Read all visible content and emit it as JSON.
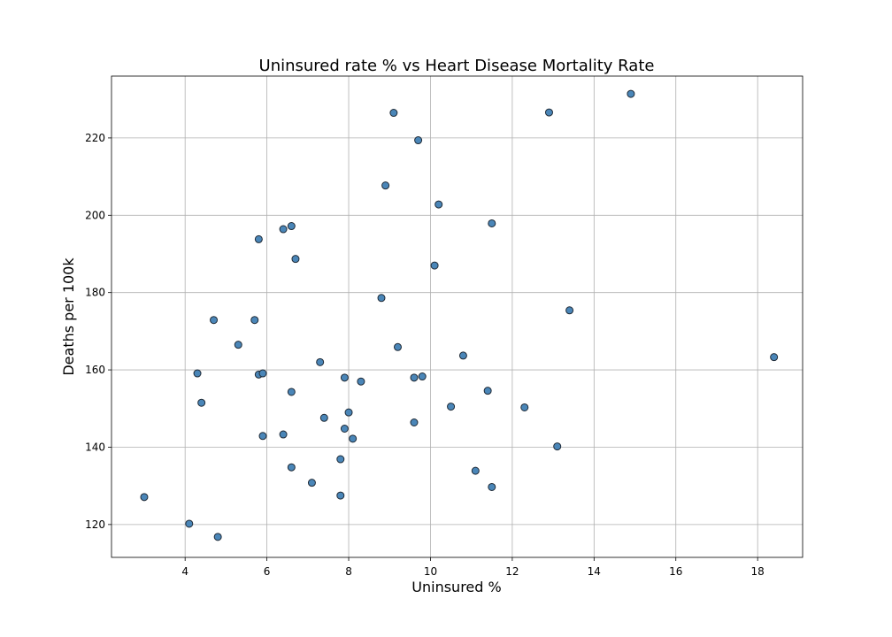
{
  "chart_data": {
    "type": "scatter",
    "title": "Uninsured rate % vs Heart Disease Mortality Rate",
    "xlabel": "Uninsured %",
    "ylabel": "Deaths per 100k",
    "xlim": [
      2.2,
      19.1
    ],
    "ylim": [
      111.5,
      236.0
    ],
    "xticks": [
      4,
      6,
      8,
      10,
      12,
      14,
      16,
      18
    ],
    "yticks": [
      120,
      140,
      160,
      180,
      200,
      220
    ],
    "grid": true,
    "point_color": "#4a86b8",
    "point_edge_color": "#1f2a36",
    "points": [
      {
        "x": 3.0,
        "y": 127.1
      },
      {
        "x": 4.1,
        "y": 120.2
      },
      {
        "x": 4.3,
        "y": 159.1
      },
      {
        "x": 4.4,
        "y": 151.5
      },
      {
        "x": 4.7,
        "y": 172.9
      },
      {
        "x": 4.8,
        "y": 116.8
      },
      {
        "x": 5.3,
        "y": 166.5
      },
      {
        "x": 5.7,
        "y": 172.9
      },
      {
        "x": 5.8,
        "y": 193.8
      },
      {
        "x": 5.8,
        "y": 158.8
      },
      {
        "x": 5.9,
        "y": 159.1
      },
      {
        "x": 5.9,
        "y": 142.9
      },
      {
        "x": 6.4,
        "y": 196.4
      },
      {
        "x": 6.4,
        "y": 143.3
      },
      {
        "x": 6.6,
        "y": 197.2
      },
      {
        "x": 6.6,
        "y": 154.3
      },
      {
        "x": 6.6,
        "y": 134.8
      },
      {
        "x": 6.7,
        "y": 188.7
      },
      {
        "x": 7.1,
        "y": 130.8
      },
      {
        "x": 7.3,
        "y": 162.0
      },
      {
        "x": 7.4,
        "y": 147.6
      },
      {
        "x": 7.8,
        "y": 136.9
      },
      {
        "x": 7.8,
        "y": 127.5
      },
      {
        "x": 7.9,
        "y": 158.0
      },
      {
        "x": 7.9,
        "y": 144.8
      },
      {
        "x": 8.0,
        "y": 149.0
      },
      {
        "x": 8.1,
        "y": 142.2
      },
      {
        "x": 8.3,
        "y": 157.0
      },
      {
        "x": 8.8,
        "y": 178.6
      },
      {
        "x": 8.9,
        "y": 207.7
      },
      {
        "x": 9.1,
        "y": 226.5
      },
      {
        "x": 9.2,
        "y": 165.9
      },
      {
        "x": 9.6,
        "y": 158.0
      },
      {
        "x": 9.6,
        "y": 146.4
      },
      {
        "x": 9.7,
        "y": 219.4
      },
      {
        "x": 9.8,
        "y": 158.3
      },
      {
        "x": 10.1,
        "y": 187.0
      },
      {
        "x": 10.2,
        "y": 202.8
      },
      {
        "x": 10.5,
        "y": 150.5
      },
      {
        "x": 10.8,
        "y": 163.7
      },
      {
        "x": 11.1,
        "y": 133.9
      },
      {
        "x": 11.4,
        "y": 154.6
      },
      {
        "x": 11.5,
        "y": 197.9
      },
      {
        "x": 11.5,
        "y": 129.7
      },
      {
        "x": 12.3,
        "y": 150.3
      },
      {
        "x": 12.9,
        "y": 226.6
      },
      {
        "x": 13.1,
        "y": 140.2
      },
      {
        "x": 13.4,
        "y": 175.4
      },
      {
        "x": 14.9,
        "y": 231.4
      },
      {
        "x": 18.4,
        "y": 163.3
      }
    ]
  }
}
